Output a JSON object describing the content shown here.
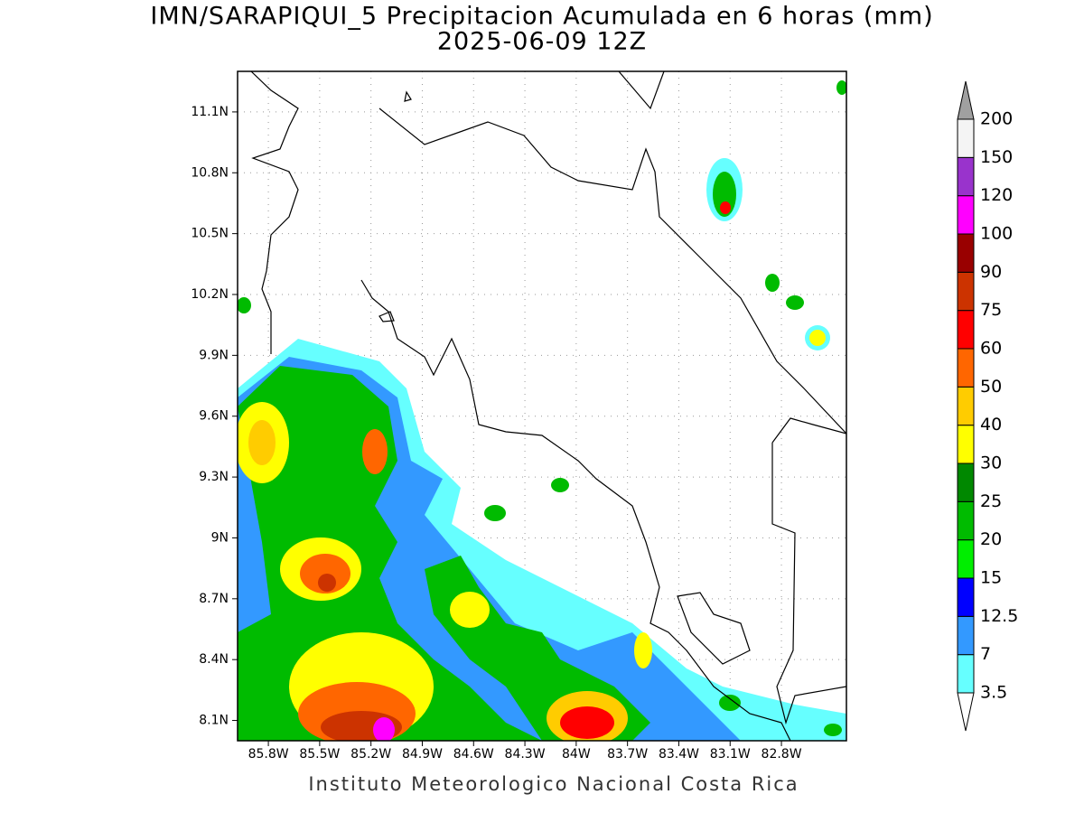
{
  "title": "IMN/SARAPIQUI_5 Precipitacion Acumulada en 6 horas (mm)",
  "subtitle": "2025-06-09 12Z",
  "footer": "Instituto Meteorologico Nacional Costa Rica",
  "map": {
    "xlim": [
      -85.98,
      -82.42
    ],
    "ylim": [
      8.0,
      11.3
    ],
    "xticks": [
      {
        "value": -85.8,
        "label": "85.8W"
      },
      {
        "value": -85.5,
        "label": "85.5W"
      },
      {
        "value": -85.2,
        "label": "85.2W"
      },
      {
        "value": -84.9,
        "label": "84.9W"
      },
      {
        "value": -84.6,
        "label": "84.6W"
      },
      {
        "value": -84.3,
        "label": "84.3W"
      },
      {
        "value": -84,
        "label": "84W"
      },
      {
        "value": -83.7,
        "label": "83.7W"
      },
      {
        "value": -83.4,
        "label": "83.4W"
      },
      {
        "value": -83.1,
        "label": "83.1W"
      },
      {
        "value": -82.8,
        "label": "82.8W"
      }
    ],
    "yticks": [
      {
        "value": 8.1,
        "label": "8.1N"
      },
      {
        "value": 8.4,
        "label": "8.4N"
      },
      {
        "value": 8.7,
        "label": "8.7N"
      },
      {
        "value": 9,
        "label": "9N"
      },
      {
        "value": 9.3,
        "label": "9.3N"
      },
      {
        "value": 9.6,
        "label": "9.6N"
      },
      {
        "value": 9.9,
        "label": "9.9N"
      },
      {
        "value": 10.2,
        "label": "10.2N"
      },
      {
        "value": 10.5,
        "label": "10.5N"
      },
      {
        "value": 10.8,
        "label": "10.8N"
      },
      {
        "value": 11.1,
        "label": "11.1N"
      }
    ],
    "grid": true
  },
  "colorbar": {
    "levels": [
      3.5,
      7,
      12.5,
      15,
      20,
      25,
      30,
      40,
      50,
      60,
      75,
      90,
      100,
      120,
      150,
      200
    ],
    "colors": [
      "#66ffff",
      "#3399ff",
      "#0000ff",
      "#00ee00",
      "#00bb00",
      "#008800",
      "#ffff00",
      "#ffcc00",
      "#ff6600",
      "#ff0000",
      "#cc3300",
      "#990000",
      "#ff00ff",
      "#9933cc",
      "#f4f4f4"
    ],
    "under_color": "#ffffff",
    "over_color": "#a0a0a0"
  }
}
